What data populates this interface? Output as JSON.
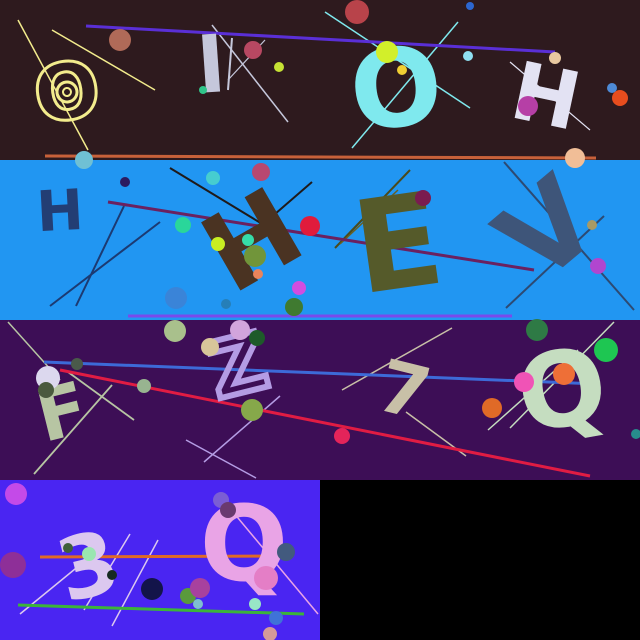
{
  "panels": [
    {
      "bg": "#2e1a1e",
      "glyphs": [
        {
          "text": "O",
          "color": "#f3ec8d",
          "style": "outline"
        },
        {
          "text": "I",
          "color": "#c5c7db",
          "style": "solid"
        },
        {
          "text": "K",
          "color": "#c5c7db",
          "style": "thin"
        },
        {
          "text": "O",
          "color": "#7fe9ee",
          "style": "solid"
        },
        {
          "text": "H",
          "color": "#e3e2f3",
          "style": "solid"
        }
      ]
    },
    {
      "bg": "#2196f2",
      "glyphs": [
        {
          "text": "H",
          "color": "#233e74",
          "style": "solid"
        },
        {
          "text": "H",
          "color": "#4a3322",
          "style": "solid"
        },
        {
          "text": "E",
          "color": "#555a2a",
          "style": "solid"
        },
        {
          "text": "V",
          "color": "#3e5579",
          "style": "solid"
        }
      ]
    },
    {
      "bg": "#3d0e56",
      "glyphs": [
        {
          "text": "F",
          "color": "#b7c5a3",
          "style": "solid"
        },
        {
          "text": "Z",
          "color": "#b49ce4",
          "style": "outline"
        },
        {
          "text": "7",
          "color": "#c8c0a7",
          "style": "solid"
        },
        {
          "text": "Q",
          "color": "#c5ddc0",
          "style": "solid"
        }
      ]
    },
    {
      "bg": "#4a25f2",
      "glyphs": [
        {
          "text": "3",
          "color": "#dcc8ef",
          "style": "solid"
        },
        {
          "text": "Q",
          "color": "#e9a4e6",
          "style": "solid"
        }
      ]
    }
  ]
}
